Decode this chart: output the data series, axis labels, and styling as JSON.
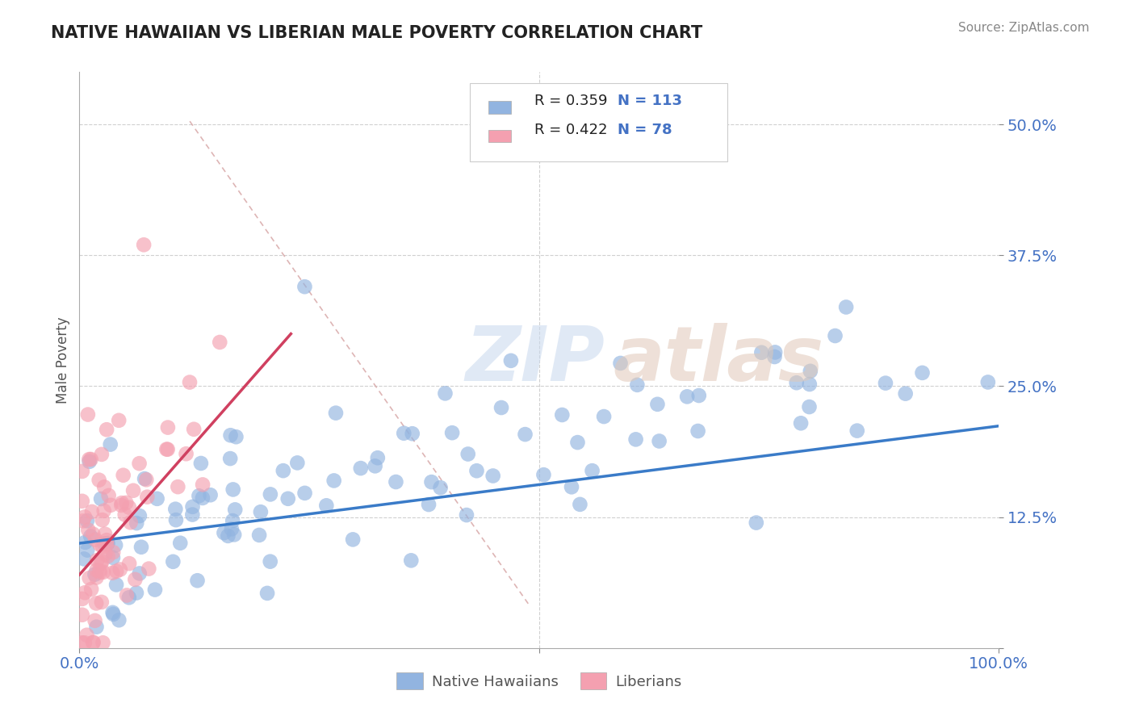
{
  "title": "NATIVE HAWAIIAN VS LIBERIAN MALE POVERTY CORRELATION CHART",
  "source": "Source: ZipAtlas.com",
  "ylabel": "Male Poverty",
  "y_ticks": [
    0.0,
    0.125,
    0.25,
    0.375,
    0.5
  ],
  "y_tick_labels": [
    "",
    "12.5%",
    "25.0%",
    "37.5%",
    "50.0%"
  ],
  "x_range": [
    0.0,
    1.0
  ],
  "y_range": [
    0.0,
    0.55
  ],
  "blue_R": 0.359,
  "blue_N": 113,
  "pink_R": 0.422,
  "pink_N": 78,
  "blue_color": "#92b4e0",
  "pink_color": "#f4a0b0",
  "blue_line_color": "#3a7bc8",
  "pink_line_color": "#d04060",
  "diagonal_color": "#d8a8a8",
  "legend_label_blue": "Native Hawaiians",
  "legend_label_pink": "Liberians"
}
